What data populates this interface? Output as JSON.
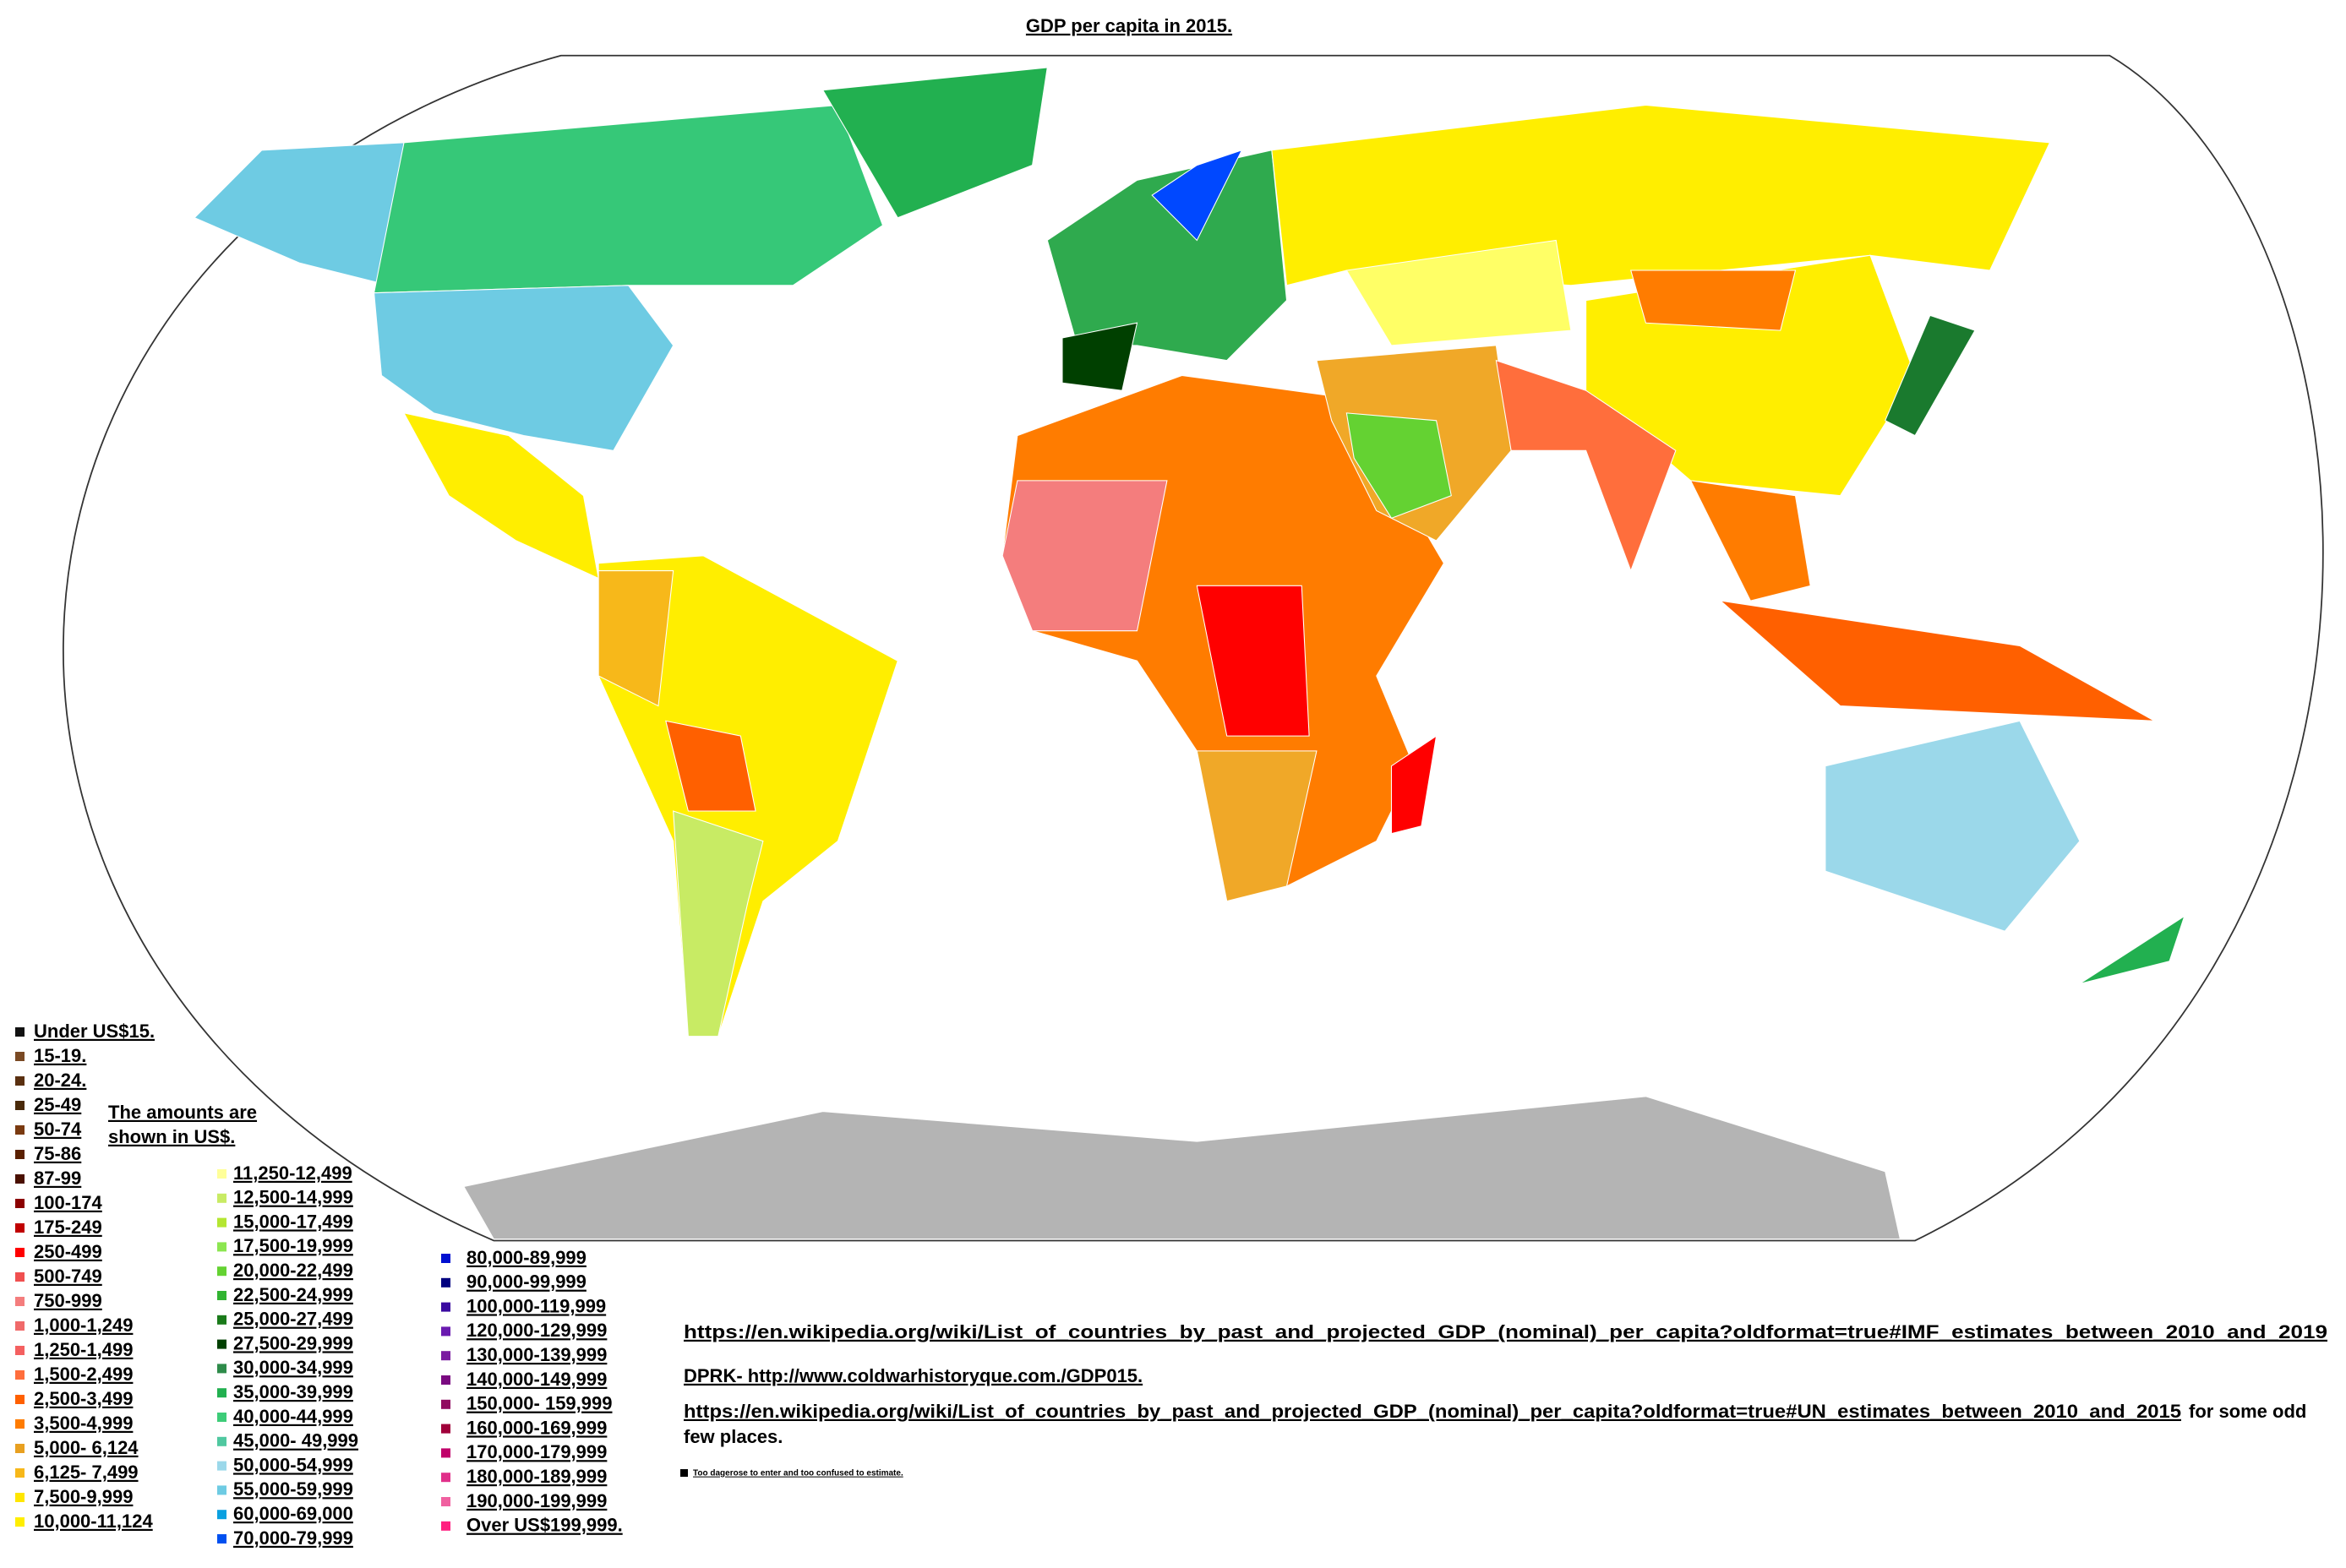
{
  "title": "GDP per capita in 2015.",
  "legend": {
    "columns": [
      [
        {
          "label": "Under US$15.",
          "color": "#111111"
        },
        {
          "label": "15-19.",
          "color": "#7a4a24"
        },
        {
          "label": "20-24.",
          "color": "#5a3010"
        },
        {
          "label": "25-49",
          "color": "#4a2a0a"
        },
        {
          "label": "50-74",
          "color": "#7a3a10"
        },
        {
          "label": "75-86",
          "color": "#5a2000"
        },
        {
          "label": "87-99",
          "color": "#4a1000"
        },
        {
          "label": "100-174",
          "color": "#8b0000"
        },
        {
          "label": "175-249",
          "color": "#c00000"
        },
        {
          "label": "250-499",
          "color": "#ff0000"
        },
        {
          "label": "500-749",
          "color": "#f05050"
        },
        {
          "label": "750-999",
          "color": "#f47d7d"
        },
        {
          "label": "1,000-1,249",
          "color": "#f06a6a"
        },
        {
          "label": "1,250-1,499",
          "color": "#f46060"
        },
        {
          "label": "1,500-2,499",
          "color": "#ff6e3c"
        },
        {
          "label": "2,500-3,499",
          "color": "#ff6000"
        },
        {
          "label": "3,500-4,999",
          "color": "#ff7c00"
        },
        {
          "label": "5,000- 6,124",
          "color": "#e8a020"
        },
        {
          "label": "6,125- 7,499",
          "color": "#f7b81a"
        },
        {
          "label": "7,500-9,999",
          "color": "#ffe600"
        },
        {
          "label": "10,000-11,124",
          "color": "#ffee00"
        }
      ],
      [
        {
          "label": "11,250-12,499",
          "color": "#ffff99"
        },
        {
          "label": "12,500-14,999",
          "color": "#c8eb64"
        },
        {
          "label": "15,000-17,499",
          "color": "#b4e632"
        },
        {
          "label": "17,500-19,999",
          "color": "#8ce650"
        },
        {
          "label": "20,000-22,499",
          "color": "#64d232"
        },
        {
          "label": "22,500-24,999",
          "color": "#32b432"
        },
        {
          "label": "25,000-27,499",
          "color": "#1a7a1a"
        },
        {
          "label": "27,500-29,999",
          "color": "#004000"
        },
        {
          "label": "30,000-34,999",
          "color": "#2e8b4a"
        },
        {
          "label": "35,000-39,999",
          "color": "#22b050"
        },
        {
          "label": "40,000-44,999",
          "color": "#3dcc78"
        },
        {
          "label": "45,000- 49,999",
          "color": "#50c8a0"
        },
        {
          "label": "50,000-54,999",
          "color": "#9bd8ea"
        },
        {
          "label": "55,000-59,999",
          "color": "#6ecbe3"
        },
        {
          "label": "60,000-69,000",
          "color": "#0aa0e0"
        },
        {
          "label": "70,000-79,999",
          "color": "#0050f0"
        }
      ],
      [
        {
          "label": "80,000-89,999",
          "color": "#0010d0"
        },
        {
          "label": "90,000-99,999",
          "color": "#000080"
        },
        {
          "label": "100,000-119,999",
          "color": "#3a0aa0"
        },
        {
          "label": "120,000-129,999",
          "color": "#6a1ab0"
        },
        {
          "label": "130,000-139,999",
          "color": "#7a1aa0"
        },
        {
          "label": "140,000-149,999",
          "color": "#7a0a80"
        },
        {
          "label": "150,000- 159,999",
          "color": "#900a60"
        },
        {
          "label": "160,000-169,999",
          "color": "#a0003a"
        },
        {
          "label": "170,000-179,999",
          "color": "#c0006a"
        },
        {
          "label": "180,000-189,999",
          "color": "#e0308a"
        },
        {
          "label": "190,000-199,999",
          "color": "#f060a0"
        },
        {
          "label": "Over US$199,999.",
          "color": "#ff2080"
        }
      ]
    ],
    "note": [
      "The amounts are",
      "shown in US$."
    ]
  },
  "sources": [
    "https://en.wikipedia.org/wiki/List_of_countries_by_past_and_projected_GDP_(nominal)_per_capita?oldformat=true#IMF_estimates_between_2010_and_2019",
    "DPRK- http://www.coldwarhistoryque.com./GDP015.",
    "https://en.wikipedia.org/wiki/List_of_countries_by_past_and_projected_GDP_(nominal)_per_capita?oldformat=true#UN_estimates_between_2010_and_2015"
  ],
  "source_note": [
    "for some odd",
    "few places."
  ],
  "unrated": {
    "label": "Too dagerose to enter and too confused to estimate.",
    "color": "#000000"
  }
}
